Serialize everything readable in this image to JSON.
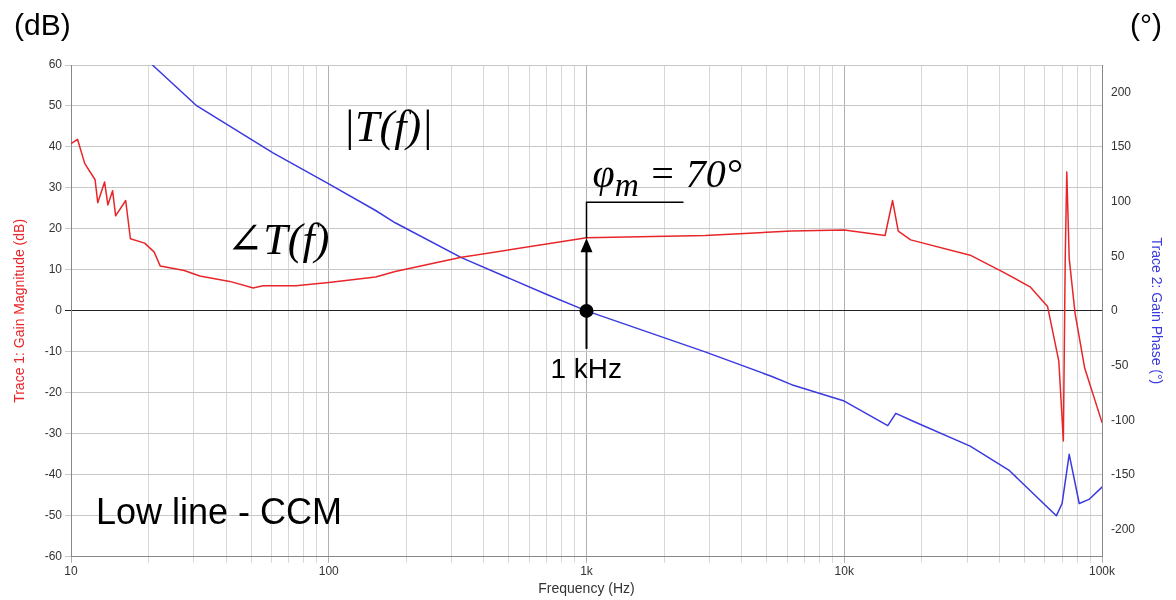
{
  "chart_data": {
    "type": "line",
    "xlabel": "Frequency (Hz)",
    "ylabel": "Trace 1: Gain Magnitude (dB)",
    "y2label": "Trace 2: Gain Phase (°)",
    "log": "x",
    "grid": true,
    "legend": false,
    "marker": "none",
    "line_style": "solid",
    "xlim": [
      10,
      100000
    ],
    "xticks": [
      {
        "value": 10,
        "label": "10"
      },
      {
        "value": 20,
        "label": null
      },
      {
        "value": 30,
        "label": null
      },
      {
        "value": 40,
        "label": null
      },
      {
        "value": 50,
        "label": null
      },
      {
        "value": 60,
        "label": null
      },
      {
        "value": 70,
        "label": null
      },
      {
        "value": 80,
        "label": null
      },
      {
        "value": 90,
        "label": null
      },
      {
        "value": 100,
        "label": "100"
      },
      {
        "value": 200,
        "label": null
      },
      {
        "value": 300,
        "label": null
      },
      {
        "value": 400,
        "label": null
      },
      {
        "value": 500,
        "label": null
      },
      {
        "value": 600,
        "label": null
      },
      {
        "value": 700,
        "label": null
      },
      {
        "value": 800,
        "label": null
      },
      {
        "value": 900,
        "label": null
      },
      {
        "value": 1000,
        "label": "1k"
      },
      {
        "value": 2000,
        "label": null
      },
      {
        "value": 3000,
        "label": null
      },
      {
        "value": 4000,
        "label": null
      },
      {
        "value": 5000,
        "label": null
      },
      {
        "value": 6000,
        "label": null
      },
      {
        "value": 7000,
        "label": null
      },
      {
        "value": 8000,
        "label": null
      },
      {
        "value": 9000,
        "label": null
      },
      {
        "value": 10000,
        "label": "10k"
      },
      {
        "value": 20000,
        "label": null
      },
      {
        "value": 30000,
        "label": null
      },
      {
        "value": 40000,
        "label": null
      },
      {
        "value": 50000,
        "label": null
      },
      {
        "value": 60000,
        "label": null
      },
      {
        "value": 70000,
        "label": null
      },
      {
        "value": 80000,
        "label": null
      },
      {
        "value": 90000,
        "label": null
      },
      {
        "value": 100000,
        "label": "100k"
      }
    ],
    "ylim": [
      -60,
      60
    ],
    "yticks": [
      -60,
      -50,
      -40,
      -30,
      -20,
      -10,
      0,
      10,
      20,
      30,
      40,
      50,
      60
    ],
    "y2lim": [
      -225,
      225
    ],
    "y2ticks": [
      -200,
      -150,
      -100,
      -50,
      0,
      50,
      100,
      150,
      200
    ],
    "series": [
      {
        "color": "#e8262a",
        "axis": "y2",
        "x": [
          10,
          10.6,
          11.3,
          12.4,
          12.7,
          13.5,
          13.9,
          14.5,
          14.9,
          16.3,
          17,
          19.3,
          21,
          22.2,
          27.5,
          31.6,
          41.3,
          51,
          55.6,
          74.6,
          100,
          152,
          181,
          327,
          1000,
          2884,
          6250,
          10000,
          14400,
          15400,
          16200,
          18100,
          30800,
          41000,
          52600,
          61500,
          68000,
          70800,
          72000,
          73000,
          74600,
          78600,
          85600,
          100000
        ],
        "values": [
          153,
          157,
          135,
          120,
          99,
          118,
          97,
          110,
          87,
          101,
          66,
          62,
          54,
          41,
          37,
          32,
          27,
          21,
          23,
          23,
          26,
          31,
          36,
          49,
          67,
          69,
          73,
          74,
          69,
          101,
          73,
          65,
          51,
          36,
          22,
          4,
          -46,
          -119,
          48,
          127,
          48,
          -2,
          -52,
          -102
        ]
      },
      {
        "color": "#3a3ae0",
        "x": [
          20.7,
          30.8,
          61,
          100,
          152,
          181,
          327,
          702,
          1000,
          2884,
          5240,
          6250,
          10000,
          14750,
          15850,
          18600,
          30800,
          43800,
          66500,
          70000,
          74600,
          81600,
          89000,
          100000
        ],
        "values": [
          60,
          50,
          38.5,
          31,
          24.5,
          21.5,
          13,
          4,
          0,
          -10,
          -16,
          -18,
          -22,
          -28,
          -25,
          -27,
          -33,
          -39,
          -50,
          -47,
          -35,
          -47,
          -46,
          -43
        ]
      }
    ],
    "annotations": [
      "(dB)",
      "(°)",
      "|T(f)|",
      "∠T(f)",
      {
        "text": "φ$_{m}$ = 70°",
        "x": 1000,
        "y": 17.7
      },
      {
        "text": "1 kHz",
        "x": 1000,
        "y": 0
      },
      "Low line - CCM"
    ]
  }
}
